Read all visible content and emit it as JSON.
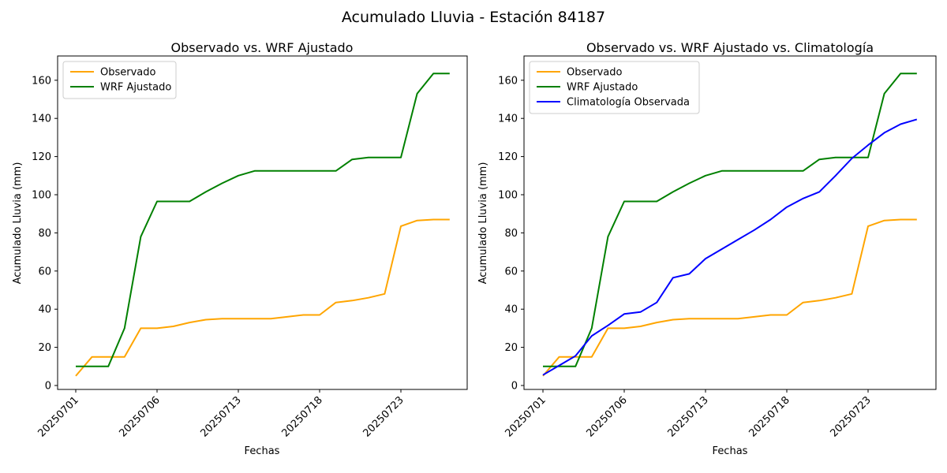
{
  "figure": {
    "suptitle": "Acumulado Lluvia - Estación 84187",
    "background": "#ffffff",
    "text_color": "#000000",
    "spine_color": "#000000",
    "legend_border_color": "#cccccc"
  },
  "chart_data": [
    {
      "type": "line",
      "title": "Observado vs. WRF Ajustado",
      "xlabel": "Fechas",
      "ylabel": "Acumulado Lluvia (mm)",
      "n_points": 24,
      "xtick_indices": [
        0,
        5,
        10,
        15,
        20
      ],
      "xtick_labels": [
        "20250701",
        "20250706",
        "20250713",
        "20250718",
        "20250723"
      ],
      "yticks": [
        0,
        20,
        40,
        60,
        80,
        100,
        120,
        140,
        160
      ],
      "ylim": [
        -2.5,
        172.7
      ],
      "grid": false,
      "legend_position": "upper-left",
      "series": [
        {
          "name": "observado",
          "label": "Observado",
          "color": "#FFA500",
          "values": [
            5,
            15,
            15,
            15,
            30,
            30,
            31,
            33,
            34.5,
            35,
            35,
            35,
            35,
            36,
            37,
            37,
            43.5,
            44.5,
            46,
            48,
            83.5,
            86.5,
            87,
            87
          ]
        },
        {
          "name": "wrf-ajustado",
          "label": "WRF Ajustado",
          "color": "#008000",
          "values": [
            10,
            10,
            10,
            30,
            78,
            96.5,
            96.5,
            96.5,
            101.5,
            106,
            110,
            112.5,
            112.5,
            112.5,
            112.5,
            112.5,
            112.5,
            118.5,
            119.5,
            119.5,
            119.5,
            153,
            163.5,
            163.5
          ]
        }
      ]
    },
    {
      "type": "line",
      "title": "Observado vs. WRF Ajustado vs. Climatología",
      "xlabel": "Fechas",
      "ylabel": "Acumulado Lluvia (mm)",
      "n_points": 24,
      "xtick_indices": [
        0,
        5,
        10,
        15,
        20
      ],
      "xtick_labels": [
        "20250701",
        "20250706",
        "20250713",
        "20250718",
        "20250723"
      ],
      "yticks": [
        0,
        20,
        40,
        60,
        80,
        100,
        120,
        140,
        160
      ],
      "ylim": [
        -2.5,
        172.7
      ],
      "grid": false,
      "legend_position": "upper-left",
      "series": [
        {
          "name": "observado",
          "label": "Observado",
          "color": "#FFA500",
          "values": [
            5,
            15,
            15,
            15,
            30,
            30,
            31,
            33,
            34.5,
            35,
            35,
            35,
            35,
            36,
            37,
            37,
            43.5,
            44.5,
            46,
            48,
            83.5,
            86.5,
            87,
            87
          ]
        },
        {
          "name": "wrf-ajustado",
          "label": "WRF Ajustado",
          "color": "#008000",
          "values": [
            10,
            10,
            10,
            30,
            78,
            96.5,
            96.5,
            96.5,
            101.5,
            106,
            110,
            112.5,
            112.5,
            112.5,
            112.5,
            112.5,
            112.5,
            118.5,
            119.5,
            119.5,
            119.5,
            153,
            163.5,
            163.5
          ]
        },
        {
          "name": "climatologia-observada",
          "label": "Climatología Observada",
          "color": "#0000FF",
          "values": [
            5.5,
            10.5,
            15.5,
            26,
            31.5,
            37.5,
            38.5,
            43.5,
            56.5,
            58.5,
            66.5,
            71.5,
            76.5,
            81.5,
            87,
            93.5,
            98,
            101.5,
            110,
            119,
            126,
            132.5,
            137,
            139.5
          ]
        }
      ]
    }
  ]
}
